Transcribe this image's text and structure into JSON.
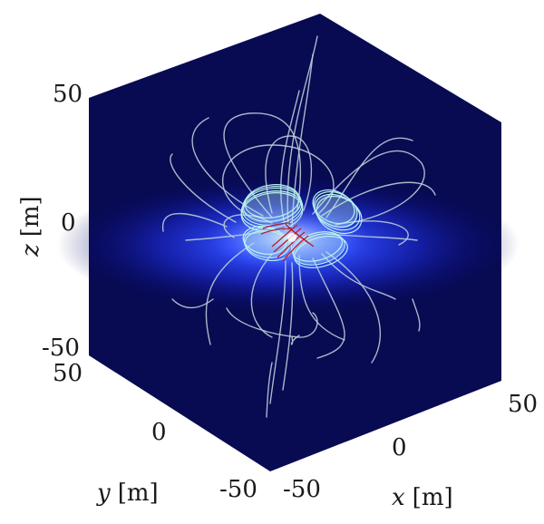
{
  "chart_data": {
    "type": "3d-field-lines",
    "axes": {
      "x": {
        "label_var": "x",
        "label_unit": "[m]",
        "ticks": [
          "-50",
          "0",
          "50"
        ],
        "range": [
          -50,
          50
        ]
      },
      "y": {
        "label_var": "y",
        "label_unit": "[m]",
        "ticks": [
          "-50",
          "0",
          "50"
        ],
        "range": [
          -50,
          50
        ]
      },
      "z": {
        "label_var": "z",
        "label_unit": "[m]",
        "ticks": [
          "-50",
          "0",
          "50"
        ],
        "range": [
          -50,
          50
        ]
      }
    },
    "grid": false,
    "colors": {
      "background": "#080a52",
      "glow_center": "#3a58ff",
      "field_line": "#b9ccd8",
      "coil": "#b8f2f0",
      "core": "#b5202c"
    }
  }
}
